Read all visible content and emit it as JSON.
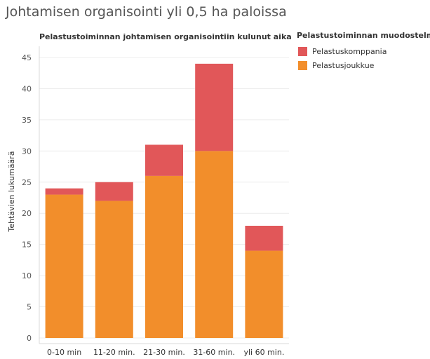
{
  "page": {
    "title": "Johtamisen organisointi yli 0,5 ha paloissa"
  },
  "chart_data": {
    "type": "bar",
    "stacked": true,
    "title": "Pelastustoiminnan johtamisen organisointiin kulunut aika",
    "xlabel": "",
    "ylabel": "Tehtävien lukumäärä",
    "categories": [
      "0-10 min",
      "11-20 min.",
      "21-30 min.",
      "31-60 min.",
      "yli 60 min."
    ],
    "series": [
      {
        "name": "Pelastusjoukkue",
        "values": [
          23,
          22,
          26,
          30,
          14
        ],
        "color": "#f28e2b"
      },
      {
        "name": "Pelastuskomppania",
        "values": [
          1,
          3,
          5,
          14,
          4
        ],
        "color": "#e15759"
      }
    ],
    "ylim": [
      0,
      45
    ],
    "yticks": [
      0,
      5,
      10,
      15,
      20,
      25,
      30,
      35,
      40,
      45
    ],
    "grid": true,
    "legend": {
      "title": "Pelastustoiminnan muodostelma",
      "placement": "right",
      "order": [
        "Pelastuskomppania",
        "Pelastusjoukkue"
      ]
    }
  }
}
